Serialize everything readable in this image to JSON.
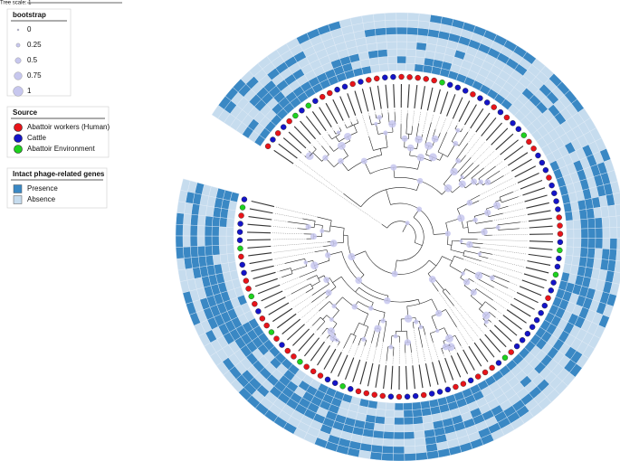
{
  "tree_scale": "Tree scale: 1",
  "legends": [
    {
      "title": "bootstrap",
      "items": [
        "0",
        "0.25",
        "0.5",
        "0.75",
        "1"
      ]
    },
    {
      "title": "Source",
      "items": [
        "Abattoir workers (Human)",
        "Cattle",
        "Abattoir Environment"
      ]
    },
    {
      "title": "Intact phage-related genes",
      "items": [
        "Presence",
        "Absence"
      ]
    }
  ]
}
